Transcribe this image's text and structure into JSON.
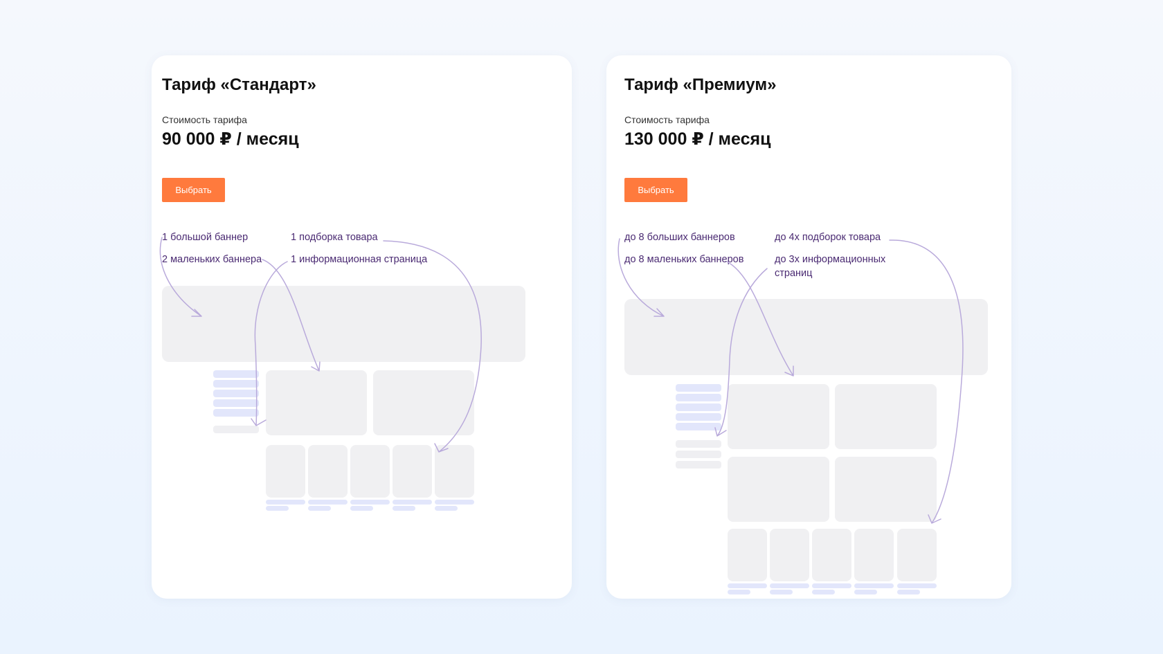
{
  "plans": [
    {
      "title": "Тариф «Стандарт»",
      "price_label": "Стоимость тарифа",
      "price": "90 000 ₽ / месяц",
      "button_label": "Выбрать",
      "features": [
        "1 большой баннер",
        "2 маленьких баннера",
        "1 подборка товара",
        "1 информационная страница"
      ]
    },
    {
      "title": "Тариф «Премиум»",
      "price_label": "Стоимость тарифа",
      "price": "130 000 ₽ / месяц",
      "button_label": "Выбрать",
      "features": [
        "до 8 больших баннеров",
        "до 8 маленьких баннеров",
        "до 4х подборок товара",
        "до 3х информационных страниц"
      ]
    }
  ],
  "colors": {
    "accent_button": "#ff7a3d",
    "feature_text": "#4a2a72",
    "placeholder_block": "#f0f0f2",
    "placeholder_bar": "#e2e6fb",
    "arrow": "#b9aadb"
  }
}
